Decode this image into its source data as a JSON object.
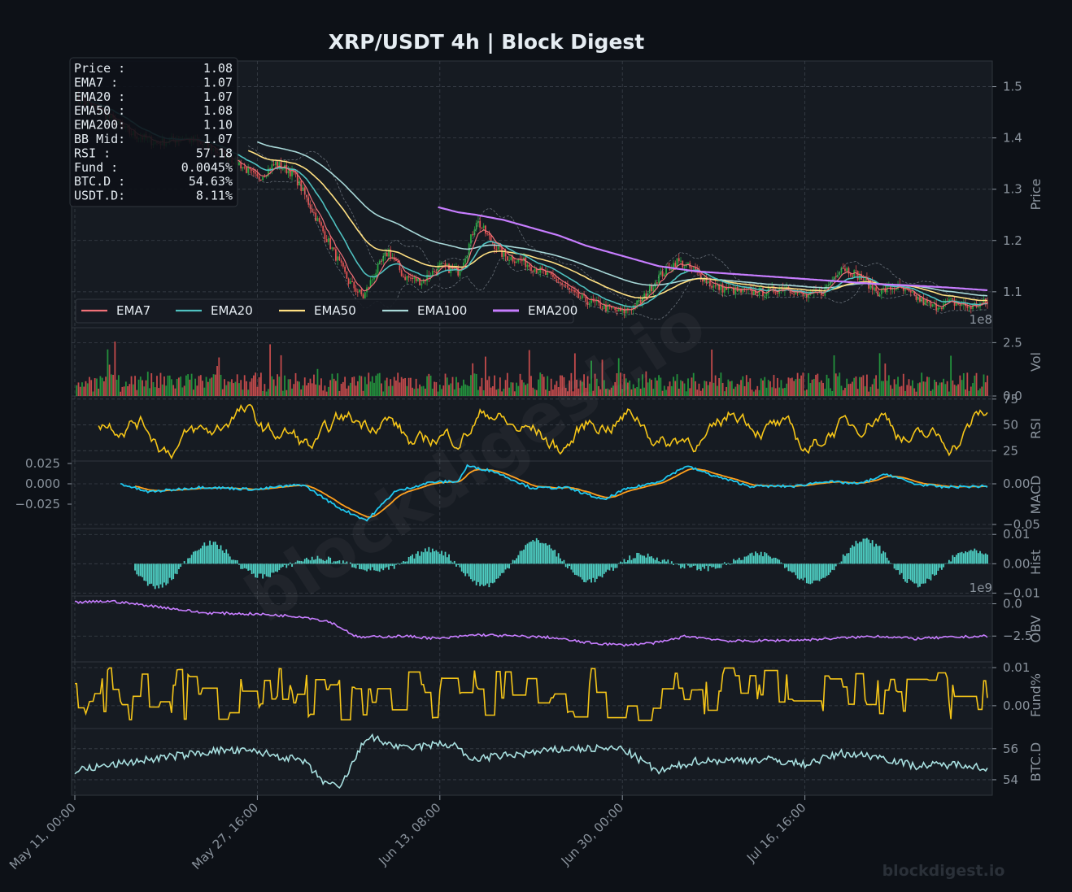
{
  "title": "XRP/USDT  4h  |  Block Digest",
  "watermark": "blockdigest.io",
  "footer_brand": "blockdigest.io",
  "colors": {
    "bg": "#0d1117",
    "panel": "#161b22",
    "grid": "#3a4049",
    "text": "#e6edf3",
    "axis": "#8b949e",
    "up": "#26a641",
    "down": "#e05252",
    "ema7": "#f07178",
    "ema20": "#4fc1c0",
    "ema50": "#ffe082",
    "ema100": "#a8d8d8",
    "ema200": "#c77dff",
    "rsi": "#f5c518",
    "macd": "#1ec8f0",
    "signal": "#ff9f1c",
    "hist": "#4fd1c5",
    "obv": "#c77dff",
    "fund": "#f5c518",
    "btcd": "#a8e0e0"
  },
  "info_box": [
    {
      "label": "Price :",
      "value": "1.08"
    },
    {
      "label": "EMA7  :",
      "value": "1.07"
    },
    {
      "label": "EMA20 :",
      "value": "1.07"
    },
    {
      "label": "EMA50 :",
      "value": "1.08"
    },
    {
      "label": "EMA200:",
      "value": "1.10"
    },
    {
      "label": "BB Mid:",
      "value": "1.07"
    },
    {
      "label": "RSI   :",
      "value": "57.18"
    },
    {
      "label": "Fund  :",
      "value": "0.0045%"
    },
    {
      "label": "BTC.D :",
      "value": "54.63%"
    },
    {
      "label": "USDT.D:",
      "value": "8.11%"
    }
  ],
  "chart_data": {
    "type": "line",
    "x_ticks": [
      "May 11, 00:00",
      "May 27, 16:00",
      "Jun 13, 08:00",
      "Jun 30, 00:00",
      "Jul 16, 16:00"
    ],
    "x_range": [
      0,
      500
    ],
    "x_tick_positions": [
      0,
      100,
      200,
      300,
      400
    ],
    "legend": [
      "EMA7",
      "EMA20",
      "EMA50",
      "EMA100",
      "EMA200"
    ],
    "panels": [
      {
        "id": "price",
        "ylabel": "Price",
        "ylim": [
          1.03,
          1.55
        ],
        "yticks": [
          1.1,
          1.2,
          1.3,
          1.4,
          1.5
        ],
        "ytick_labels": [
          "1.1",
          "1.2",
          "1.3",
          "1.4",
          "1.5"
        ],
        "close_anchors": [
          [
            0,
            1.48
          ],
          [
            15,
            1.45
          ],
          [
            30,
            1.41
          ],
          [
            45,
            1.39
          ],
          [
            60,
            1.4
          ],
          [
            75,
            1.38
          ],
          [
            90,
            1.35
          ],
          [
            100,
            1.32
          ],
          [
            110,
            1.35
          ],
          [
            120,
            1.33
          ],
          [
            130,
            1.26
          ],
          [
            140,
            1.19
          ],
          [
            150,
            1.12
          ],
          [
            158,
            1.09
          ],
          [
            165,
            1.14
          ],
          [
            172,
            1.18
          ],
          [
            180,
            1.13
          ],
          [
            190,
            1.12
          ],
          [
            200,
            1.15
          ],
          [
            210,
            1.14
          ],
          [
            215,
            1.18
          ],
          [
            220,
            1.24
          ],
          [
            228,
            1.2
          ],
          [
            235,
            1.17
          ],
          [
            245,
            1.16
          ],
          [
            255,
            1.14
          ],
          [
            265,
            1.12
          ],
          [
            275,
            1.09
          ],
          [
            290,
            1.07
          ],
          [
            300,
            1.06
          ],
          [
            310,
            1.08
          ],
          [
            320,
            1.13
          ],
          [
            330,
            1.16
          ],
          [
            340,
            1.14
          ],
          [
            350,
            1.11
          ],
          [
            365,
            1.1
          ],
          [
            380,
            1.1
          ],
          [
            390,
            1.11
          ],
          [
            400,
            1.09
          ],
          [
            410,
            1.1
          ],
          [
            420,
            1.15
          ],
          [
            430,
            1.13
          ],
          [
            440,
            1.1
          ],
          [
            450,
            1.11
          ],
          [
            460,
            1.09
          ],
          [
            470,
            1.07
          ],
          [
            480,
            1.08
          ],
          [
            490,
            1.07
          ],
          [
            500,
            1.08
          ]
        ],
        "ema_start": {
          "EMA7": 0,
          "EMA20": 0,
          "EMA50": 95,
          "EMA100": 100,
          "EMA200": 199
        },
        "ema_alpha": {
          "EMA7": 0.25,
          "EMA20": 0.095,
          "EMA50": 0.04,
          "EMA100": 0.02,
          "EMA200": 0.01
        },
        "ema200_anchors": [
          [
            199,
            1.265
          ],
          [
            210,
            1.255
          ],
          [
            220,
            1.25
          ],
          [
            235,
            1.24
          ],
          [
            250,
            1.225
          ],
          [
            265,
            1.21
          ],
          [
            280,
            1.19
          ],
          [
            300,
            1.17
          ],
          [
            320,
            1.15
          ],
          [
            340,
            1.14
          ],
          [
            360,
            1.135
          ],
          [
            380,
            1.13
          ],
          [
            400,
            1.125
          ],
          [
            420,
            1.12
          ],
          [
            440,
            1.115
          ],
          [
            460,
            1.112
          ],
          [
            480,
            1.108
          ],
          [
            500,
            1.103
          ]
        ]
      },
      {
        "id": "volume",
        "ylabel": "Vol",
        "exponent_label": "1e8",
        "ylim": [
          0,
          3.2
        ],
        "yticks": [
          0,
          2.5
        ],
        "ytick_labels": [
          "0.0",
          "2.5"
        ]
      },
      {
        "id": "rsi",
        "ylabel": "RSI",
        "ylim": [
          15,
          78
        ],
        "yticks": [
          25,
          50,
          75
        ],
        "ytick_labels": [
          "25",
          "50",
          "75"
        ]
      },
      {
        "id": "macd",
        "ylabel": "MACD",
        "ylim": [
          -0.055,
          0.028
        ],
        "yticks": [
          -0.05,
          0.0
        ],
        "ytick_labels": [
          "−0.05",
          "0.00"
        ],
        "left_yticks": [
          -0.025,
          0.0,
          0.025
        ],
        "left_ytick_labels": [
          "−0.025",
          "0.000",
          "0.025"
        ]
      },
      {
        "id": "hist",
        "ylabel": "Hist",
        "ylim": [
          -0.011,
          0.012
        ],
        "yticks": [
          -0.01,
          0.0,
          0.01
        ],
        "ytick_labels": [
          "−0.01",
          "0.00",
          "0.01"
        ]
      },
      {
        "id": "obv",
        "ylabel": "OBV",
        "exponent_label": "1e9",
        "ylim": [
          -4.5,
          0.6
        ],
        "yticks": [
          -2.5,
          0.0
        ],
        "ytick_labels": [
          "−2.5",
          "0.0"
        ]
      },
      {
        "id": "fund",
        "ylabel": "Fund%",
        "ylim": [
          -0.006,
          0.0115
        ],
        "yticks": [
          0.0,
          0.01
        ],
        "ytick_labels": [
          "0.00",
          "0.01"
        ]
      },
      {
        "id": "btcd",
        "ylabel": "BTC.D",
        "ylim": [
          53.0,
          57.3
        ],
        "yticks": [
          54,
          56
        ],
        "ytick_labels": [
          "54",
          "56"
        ]
      }
    ]
  }
}
